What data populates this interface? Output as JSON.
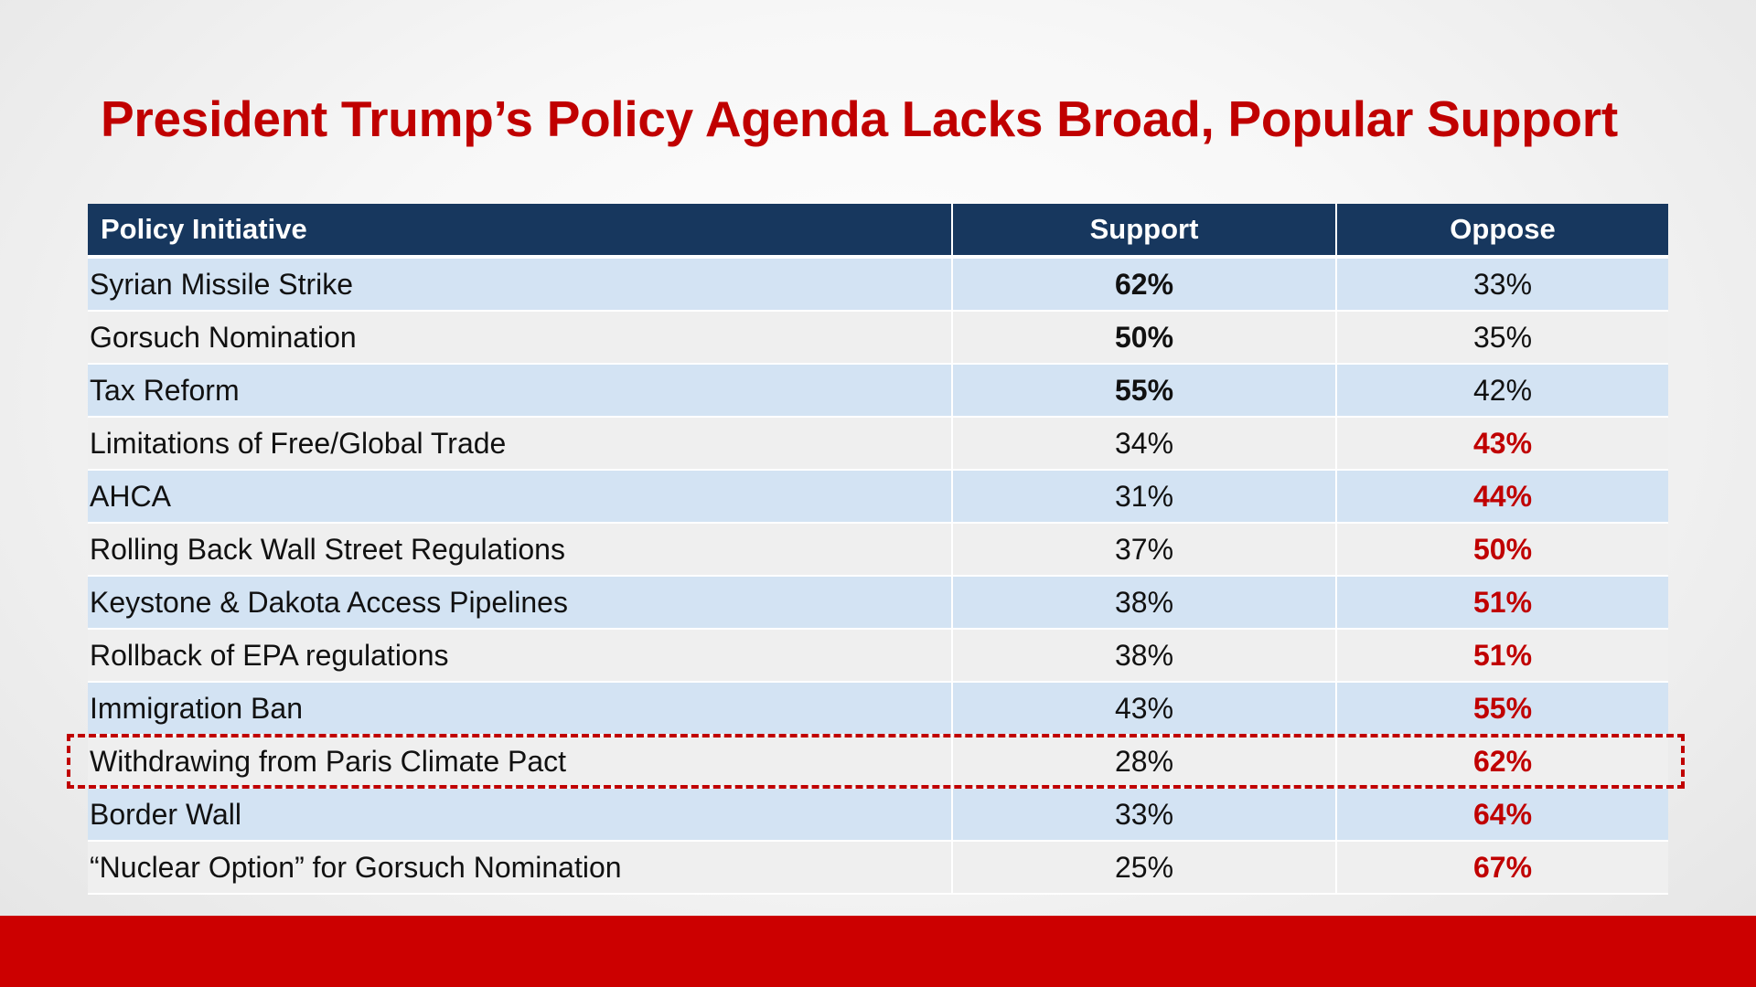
{
  "slide": {
    "title": "President Trump’s Policy Agenda Lacks Broad, Popular Support",
    "colors": {
      "title": "#c00000",
      "header_bg": "#17375e",
      "row_odd": "#d3e3f3",
      "row_even": "#efefef",
      "footer": "#cc0000",
      "highlight": "#c00000"
    }
  },
  "chart_data": {
    "type": "table",
    "title": "President Trump’s Policy Agenda Lacks Broad, Popular Support",
    "columns": [
      "Policy Initiative",
      "Support",
      "Oppose"
    ],
    "rows": [
      {
        "policy": "Syrian Missile Strike",
        "support": "62%",
        "oppose": "33%",
        "support_value": 62,
        "oppose_value": 33,
        "majority": "support"
      },
      {
        "policy": "Gorsuch Nomination",
        "support": "50%",
        "oppose": "35%",
        "support_value": 50,
        "oppose_value": 35,
        "majority": "support"
      },
      {
        "policy": "Tax Reform",
        "support": "55%",
        "oppose": "42%",
        "support_value": 55,
        "oppose_value": 42,
        "majority": "support"
      },
      {
        "policy": "Limitations of Free/Global Trade",
        "support": "34%",
        "oppose": "43%",
        "support_value": 34,
        "oppose_value": 43,
        "majority": "oppose"
      },
      {
        "policy": "AHCA",
        "support": "31%",
        "oppose": "44%",
        "support_value": 31,
        "oppose_value": 44,
        "majority": "oppose"
      },
      {
        "policy": "Rolling Back Wall Street Regulations",
        "support": "37%",
        "oppose": "50%",
        "support_value": 37,
        "oppose_value": 50,
        "majority": "oppose"
      },
      {
        "policy": "Keystone & Dakota Access Pipelines",
        "support": "38%",
        "oppose": "51%",
        "support_value": 38,
        "oppose_value": 51,
        "majority": "oppose"
      },
      {
        "policy": "Rollback of EPA regulations",
        "support": "38%",
        "oppose": "51%",
        "support_value": 38,
        "oppose_value": 51,
        "majority": "oppose"
      },
      {
        "policy": "Immigration Ban",
        "support": "43%",
        "oppose": "55%",
        "support_value": 43,
        "oppose_value": 55,
        "majority": "oppose"
      },
      {
        "policy": "Withdrawing from Paris Climate Pact",
        "support": "28%",
        "oppose": "62%",
        "support_value": 28,
        "oppose_value": 62,
        "majority": "oppose",
        "highlighted": true
      },
      {
        "policy": "Border Wall",
        "support": "33%",
        "oppose": "64%",
        "support_value": 33,
        "oppose_value": 64,
        "majority": "oppose"
      },
      {
        "policy": "“Nuclear Option” for Gorsuch Nomination",
        "support": "25%",
        "oppose": "67%",
        "support_value": 25,
        "oppose_value": 67,
        "majority": "oppose"
      }
    ]
  }
}
